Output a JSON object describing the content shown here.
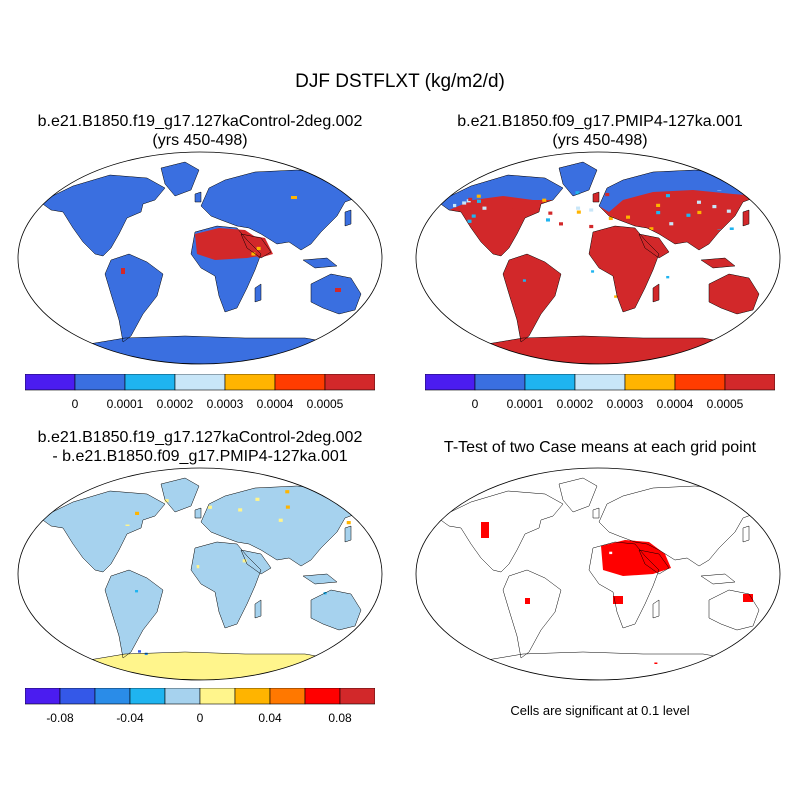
{
  "figure": {
    "main_title": "DJF DSTFLXT (kg/m2/d)",
    "note": "Cells are significant at 0.1 level"
  },
  "chart_data": [
    {
      "type": "heatmap",
      "panel": "top-left",
      "title_line1": "b.e21.B1850.f19_g17.127kaControl-2deg.002",
      "title_line2": "(yrs 450-498)",
      "dominant_color": "#3a6fe0",
      "hotspots": [
        "North Africa",
        "Arabia",
        "Sahara"
      ],
      "colorbar": {
        "tick_labels": [
          "0",
          "0.0001",
          "0.0002",
          "0.0003",
          "0.0004",
          "0.0005"
        ],
        "colors": [
          "#4b1cf0",
          "#3a6fe0",
          "#1fb4f0",
          "#c8e6f8",
          "#ffb400",
          "#ff3c00",
          "#d2282a"
        ]
      }
    },
    {
      "type": "heatmap",
      "panel": "top-right",
      "title_line1": "b.e21.B1850.f09_g17.PMIP4-127ka.001",
      "title_line2": "(yrs 450-498)",
      "dominant_color": "#d2282a",
      "colorbar": {
        "tick_labels": [
          "0",
          "0.0001",
          "0.0002",
          "0.0003",
          "0.0004",
          "0.0005"
        ],
        "colors": [
          "#4b1cf0",
          "#3a6fe0",
          "#1fb4f0",
          "#c8e6f8",
          "#ffb400",
          "#ff3c00",
          "#d2282a"
        ]
      }
    },
    {
      "type": "heatmap",
      "panel": "bottom-left",
      "title_line1": "b.e21.B1850.f19_g17.127kaControl-2deg.002",
      "title_line2": "- b.e21.B1850.f09_g17.PMIP4-127ka.001",
      "dominant_color": "#a6d2ee",
      "colorbar": {
        "tick_labels": [
          "-0.08",
          "-0.04",
          "0",
          "0.04",
          "0.08"
        ],
        "colors": [
          "#4b1cf0",
          "#3458e8",
          "#2a8ce8",
          "#1fb4f0",
          "#a6d2ee",
          "#fff58c",
          "#ffb400",
          "#ff7800",
          "#ff0000",
          "#d2282a"
        ]
      }
    },
    {
      "type": "heatmap",
      "panel": "bottom-right",
      "title": "T-Test of two Case means at each grid point",
      "significant_color": "#ff0000",
      "significant_regions": [
        "North Africa",
        "Arabia",
        "Western North America",
        "South America",
        "Australia",
        "Antarctica"
      ]
    }
  ]
}
